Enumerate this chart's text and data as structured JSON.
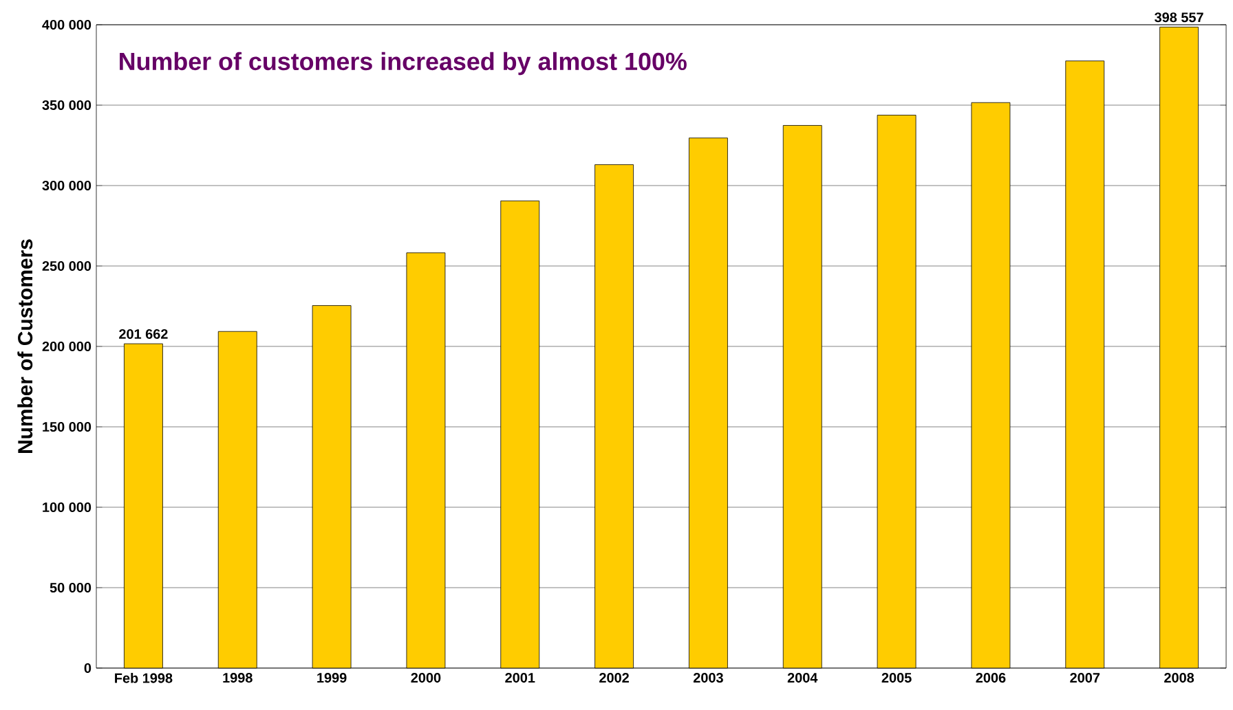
{
  "chart_data": {
    "type": "bar",
    "title": "Number of customers increased by almost 100%",
    "ylabel": "Number of Customers",
    "categories": [
      "Feb 1998",
      "1998",
      "1999",
      "2000",
      "2001",
      "2002",
      "2003",
      "2004",
      "2005",
      "2006",
      "2007",
      "2008"
    ],
    "values": [
      201662,
      209300,
      225400,
      258200,
      290500,
      313000,
      329600,
      337400,
      343800,
      351600,
      377500,
      398557
    ],
    "value_labels": [
      "201 662",
      null,
      null,
      null,
      null,
      null,
      null,
      null,
      null,
      null,
      null,
      "398 557"
    ],
    "color": "#ffcc00",
    "ylim": [
      0,
      400000
    ],
    "yticks": [
      {
        "value": 0,
        "label": "0"
      },
      {
        "value": 50000,
        "label": "50 000"
      },
      {
        "value": 100000,
        "label": "100 000"
      },
      {
        "value": 150000,
        "label": "150 000"
      },
      {
        "value": 200000,
        "label": "200 000"
      },
      {
        "value": 250000,
        "label": "250 000"
      },
      {
        "value": 300000,
        "label": "300 000"
      },
      {
        "value": 350000,
        "label": "350 000"
      },
      {
        "value": 400000,
        "label": "400 000"
      }
    ],
    "grid": "y"
  }
}
